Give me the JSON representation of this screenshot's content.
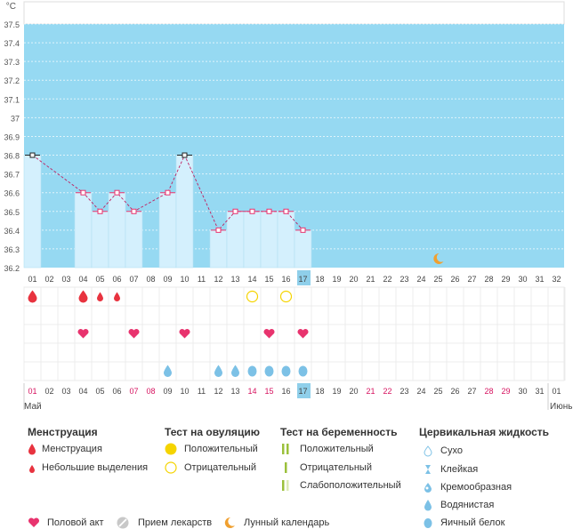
{
  "chart_data": {
    "type": "bar",
    "unit_label": "°C",
    "ylim": [
      36.2,
      37.5
    ],
    "yticks": [
      "37.5",
      "37.4",
      "37.3",
      "37.2",
      "37.1",
      "37",
      "36.9",
      "36.8",
      "36.7",
      "36.6",
      "36.5",
      "36.4",
      "36.3",
      "36.2"
    ],
    "days": [
      "01",
      "02",
      "03",
      "04",
      "05",
      "06",
      "07",
      "08",
      "09",
      "10",
      "11",
      "12",
      "13",
      "14",
      "15",
      "16",
      "17",
      "18",
      "19",
      "20",
      "21",
      "22",
      "23",
      "24",
      "25",
      "26",
      "27",
      "28",
      "29",
      "30",
      "31",
      "32"
    ],
    "today": "17",
    "temperatures": [
      {
        "day": "01",
        "value": 36.8,
        "marker": "black"
      },
      {
        "day": "04",
        "value": 36.6,
        "marker": "pink"
      },
      {
        "day": "05",
        "value": 36.5,
        "marker": "pink"
      },
      {
        "day": "06",
        "value": 36.6,
        "marker": "pink"
      },
      {
        "day": "07",
        "value": 36.5,
        "marker": "pink"
      },
      {
        "day": "09",
        "value": 36.6,
        "marker": "pink"
      },
      {
        "day": "10",
        "value": 36.8,
        "marker": "black"
      },
      {
        "day": "12",
        "value": 36.4,
        "marker": "pink"
      },
      {
        "day": "13",
        "value": 36.5,
        "marker": "pink"
      },
      {
        "day": "14",
        "value": 36.5,
        "marker": "pink"
      },
      {
        "day": "15",
        "value": 36.5,
        "marker": "pink"
      },
      {
        "day": "16",
        "value": 36.5,
        "marker": "pink"
      },
      {
        "day": "17",
        "value": 36.4,
        "marker": "pink"
      }
    ],
    "moon_day": "25",
    "symptom_rows": {
      "menstruation": [
        {
          "day": "01",
          "kind": "big"
        },
        {
          "day": "04",
          "kind": "big"
        },
        {
          "day": "05",
          "kind": "small"
        },
        {
          "day": "06",
          "kind": "small"
        }
      ],
      "ovulation_test": [
        {
          "day": "14",
          "result": "negative"
        },
        {
          "day": "16",
          "result": "negative"
        }
      ],
      "intercourse": [
        "04",
        "07",
        "10",
        "15",
        "17"
      ],
      "pregnancy_test": [],
      "cervical_fluid": [
        {
          "day": "09",
          "type": "watery"
        },
        {
          "day": "12",
          "type": "watery"
        },
        {
          "day": "13",
          "type": "watery"
        },
        {
          "day": "14",
          "type": "egg_white"
        },
        {
          "day": "15",
          "type": "egg_white"
        },
        {
          "day": "16",
          "type": "egg_white"
        },
        {
          "day": "17",
          "type": "egg_white"
        }
      ]
    },
    "bottom_days": [
      {
        "label": "01",
        "weekend": true
      },
      {
        "label": "02",
        "weekend": false
      },
      {
        "label": "03",
        "weekend": false
      },
      {
        "label": "04",
        "weekend": false
      },
      {
        "label": "05",
        "weekend": false
      },
      {
        "label": "06",
        "weekend": false
      },
      {
        "label": "07",
        "weekend": true
      },
      {
        "label": "08",
        "weekend": true
      },
      {
        "label": "09",
        "weekend": false
      },
      {
        "label": "10",
        "weekend": false
      },
      {
        "label": "11",
        "weekend": false
      },
      {
        "label": "12",
        "weekend": false
      },
      {
        "label": "13",
        "weekend": false
      },
      {
        "label": "14",
        "weekend": true
      },
      {
        "label": "15",
        "weekend": true
      },
      {
        "label": "16",
        "weekend": false
      },
      {
        "label": "17",
        "weekend": false
      },
      {
        "label": "18",
        "weekend": false
      },
      {
        "label": "19",
        "weekend": false
      },
      {
        "label": "20",
        "weekend": false
      },
      {
        "label": "21",
        "weekend": true
      },
      {
        "label": "22",
        "weekend": true
      },
      {
        "label": "23",
        "weekend": false
      },
      {
        "label": "24",
        "weekend": false
      },
      {
        "label": "25",
        "weekend": false
      },
      {
        "label": "26",
        "weekend": false
      },
      {
        "label": "27",
        "weekend": false
      },
      {
        "label": "28",
        "weekend": true
      },
      {
        "label": "29",
        "weekend": true
      },
      {
        "label": "30",
        "weekend": false
      },
      {
        "label": "31",
        "weekend": false
      },
      {
        "label": "01",
        "weekend": false
      }
    ],
    "month_start": "Май",
    "month_next": "Июнь"
  },
  "colors": {
    "sky": "#96d9f2",
    "bar": "#d4f0fd",
    "bar_edge": "#b5dff2",
    "pink": "#e8336e",
    "dash": "#c02060",
    "red_drop": "#e8333f",
    "yellow": "#f5d400",
    "green": "#9bc03b",
    "blue_drop": "#7cc1e6",
    "moon": "#f0a030",
    "weekend": "#d6125f",
    "today_bg": "#8fcfea"
  },
  "legend": {
    "menstruation": {
      "title": "Менструация",
      "items": [
        "Менструация",
        "Небольшие выделения"
      ]
    },
    "ovulation": {
      "title": "Тест на овуляцию",
      "items": [
        "Положительный",
        "Отрицательный"
      ]
    },
    "pregnancy": {
      "title": "Тест на беременность",
      "items": [
        "Положительный",
        "Отрицательный",
        "Слабоположительный"
      ]
    },
    "fluid": {
      "title": "Цервикальная жидкость",
      "items": [
        "Сухо",
        "Клейкая",
        "Кремообразная",
        "Водянистая",
        "Яичный белок"
      ]
    },
    "bottom": {
      "intercourse": "Половой акт",
      "medication": "Прием лекарств",
      "lunar": "Лунный календарь"
    }
  }
}
